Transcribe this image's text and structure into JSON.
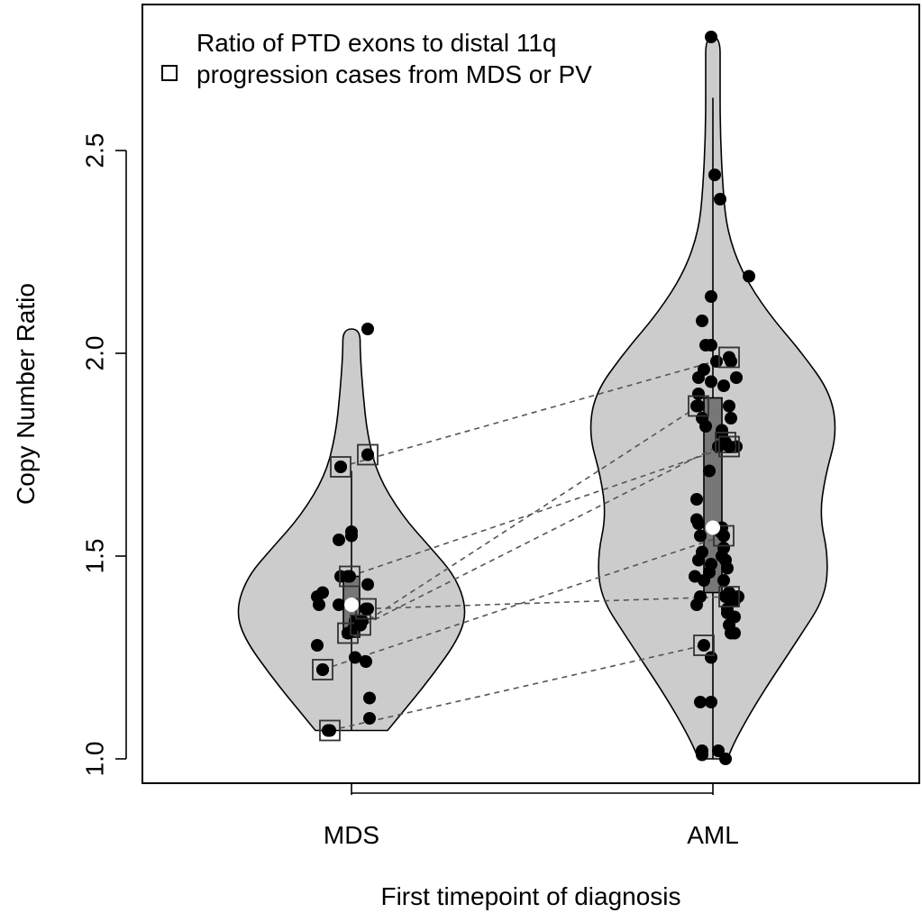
{
  "chart_data": {
    "type": "violin",
    "xlabel": "First timepoint of diagnosis",
    "ylabel": "Copy Number Ratio",
    "categories": [
      "MDS",
      "AML"
    ],
    "ylim": [
      0.94,
      2.86
    ],
    "yticks": [
      1.0,
      1.5,
      2.0,
      2.5
    ],
    "ytick_labels": [
      "1.0",
      "1.5",
      "2.0",
      "2.5"
    ],
    "legend": {
      "position": "top-left",
      "entries": [
        {
          "label": "Ratio of PTD exons to distal 11q",
          "marker": "none"
        },
        {
          "label": "progression cases from MDS or PV",
          "marker": "open-square"
        }
      ]
    },
    "colors": {
      "violin_fill": "#cccccc",
      "box_fill": "#777777",
      "points": "#000000",
      "median": "#ffffff",
      "pair_lines": "#555555"
    },
    "summary": {
      "MDS": {
        "min": 1.07,
        "q1": 1.3,
        "median": 1.38,
        "q3": 1.45,
        "max": 1.71,
        "violin_top": 2.06
      },
      "AML": {
        "min": 1.0,
        "q1": 1.41,
        "median": 1.57,
        "q3": 1.89,
        "max": 2.63,
        "violin_top": 2.78
      }
    },
    "series": [
      {
        "group": "MDS",
        "points": [
          [
            -0.19,
            1.4
          ],
          [
            -0.18,
            1.38
          ],
          [
            -0.16,
            1.41
          ],
          [
            -0.19,
            1.28
          ],
          [
            -0.16,
            1.22
          ],
          [
            -0.13,
            1.07
          ],
          [
            -0.07,
            1.54
          ],
          [
            -0.07,
            1.38
          ],
          [
            -0.06,
            1.45
          ],
          [
            -0.06,
            1.72
          ],
          [
            -0.02,
            1.31
          ],
          [
            -0.02,
            1.45
          ],
          [
            0.0,
            1.55
          ],
          [
            0.0,
            1.56
          ],
          [
            0.01,
            1.32
          ],
          [
            0.02,
            1.34
          ],
          [
            0.02,
            1.25
          ],
          [
            0.05,
            1.33
          ],
          [
            0.06,
            1.34
          ],
          [
            0.09,
            1.43
          ],
          [
            0.09,
            1.37
          ],
          [
            0.09,
            1.75
          ],
          [
            0.08,
            1.24
          ],
          [
            0.1,
            1.15
          ],
          [
            0.1,
            1.1
          ],
          [
            0.09,
            2.06
          ]
        ],
        "progression_cases": [
          [
            -0.12,
            1.07
          ],
          [
            -0.16,
            1.22
          ],
          [
            -0.02,
            1.31
          ],
          [
            -0.01,
            1.45
          ],
          [
            0.05,
            1.33
          ],
          [
            0.08,
            1.37
          ],
          [
            -0.06,
            1.72
          ],
          [
            0.09,
            1.75
          ]
        ]
      },
      {
        "group": "AML",
        "points": [
          [
            -0.06,
            2.08
          ],
          [
            -0.04,
            2.02
          ],
          [
            -0.05,
            1.96
          ],
          [
            -0.08,
            1.94
          ],
          [
            -0.08,
            1.9
          ],
          [
            -0.09,
            1.87
          ],
          [
            -0.06,
            1.84
          ],
          [
            -0.04,
            1.82
          ],
          [
            -0.02,
            1.71
          ],
          [
            -0.09,
            1.64
          ],
          [
            -0.09,
            1.59
          ],
          [
            -0.08,
            1.58
          ],
          [
            -0.07,
            1.55
          ],
          [
            -0.06,
            1.51
          ],
          [
            -0.08,
            1.49
          ],
          [
            -0.1,
            1.45
          ],
          [
            -0.07,
            1.4
          ],
          [
            -0.09,
            1.38
          ],
          [
            -0.05,
            1.44
          ],
          [
            -0.02,
            1.46
          ],
          [
            -0.01,
            1.48
          ],
          [
            -0.01,
            2.14
          ],
          [
            -0.01,
            2.02
          ],
          [
            0.01,
            2.44
          ],
          [
            -0.01,
            1.93
          ],
          [
            0.02,
            1.98
          ],
          [
            0.03,
            1.77
          ],
          [
            0.04,
            1.56
          ],
          [
            0.05,
            1.57
          ],
          [
            0.06,
            1.52
          ],
          [
            0.05,
            1.5
          ],
          [
            0.07,
            1.49
          ],
          [
            0.08,
            1.47
          ],
          [
            0.06,
            1.44
          ],
          [
            0.07,
            1.4
          ],
          [
            0.08,
            1.36
          ],
          [
            0.09,
            1.33
          ],
          [
            0.1,
            1.31
          ],
          [
            0.11,
            1.4
          ],
          [
            0.12,
            1.35
          ],
          [
            0.12,
            1.31
          ],
          [
            0.14,
            1.4
          ],
          [
            0.13,
            1.94
          ],
          [
            0.1,
            1.98
          ],
          [
            0.06,
            1.92
          ],
          [
            0.09,
            1.87
          ],
          [
            0.1,
            1.84
          ],
          [
            0.13,
            1.77
          ],
          [
            0.05,
            1.8
          ],
          [
            0.05,
            1.81
          ],
          [
            0.04,
            2.38
          ],
          [
            0.2,
            2.19
          ],
          [
            -0.07,
            1.14
          ],
          [
            -0.01,
            1.25
          ],
          [
            -0.01,
            1.14
          ],
          [
            -0.06,
            1.02
          ],
          [
            -0.06,
            1.01
          ],
          [
            0.03,
            1.02
          ],
          [
            0.07,
            1.0
          ],
          [
            0.11,
            1.4
          ],
          [
            0.09,
            1.41
          ],
          [
            0.08,
            1.37
          ],
          [
            0.12,
            1.39
          ],
          [
            -0.01,
            2.78
          ]
        ],
        "progression_cases": [
          [
            -0.05,
            1.28
          ],
          [
            0.06,
            1.55
          ],
          [
            0.07,
            1.78
          ],
          [
            -0.08,
            1.87
          ],
          [
            0.09,
            1.77
          ],
          [
            0.09,
            1.4
          ],
          [
            0.09,
            1.99
          ]
        ]
      }
    ],
    "pair_lines": [
      [
        [
          -0.12,
          1.07
        ],
        [
          -0.05,
          1.28
        ]
      ],
      [
        [
          -0.16,
          1.22
        ],
        [
          0.06,
          1.55
        ]
      ],
      [
        [
          -0.02,
          1.31
        ],
        [
          0.07,
          1.78
        ]
      ],
      [
        [
          -0.01,
          1.45
        ],
        [
          0.09,
          1.77
        ]
      ],
      [
        [
          0.05,
          1.33
        ],
        [
          -0.08,
          1.87
        ]
      ],
      [
        [
          0.08,
          1.37
        ],
        [
          0.09,
          1.4
        ]
      ],
      [
        [
          -0.06,
          1.72
        ],
        [
          0.09,
          1.99
        ]
      ]
    ]
  }
}
